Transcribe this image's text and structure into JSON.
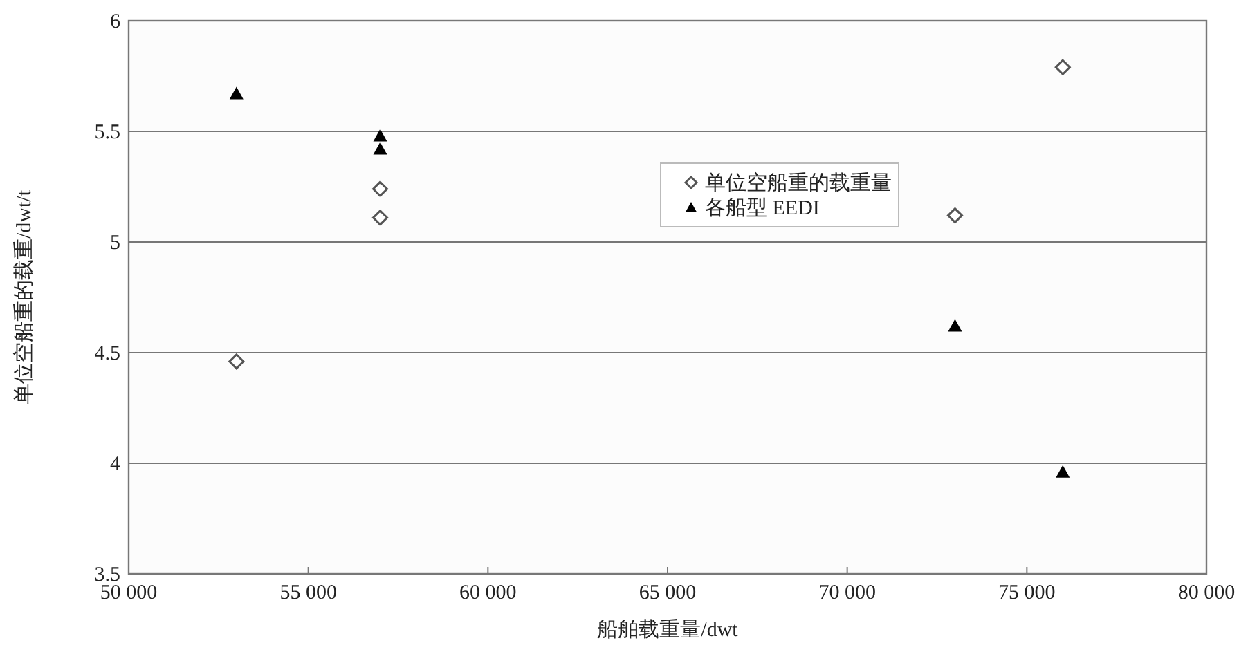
{
  "chart_data": {
    "type": "scatter",
    "xlabel": "船舶载重量/dwt",
    "ylabel": "单位空船重的载重/dwt/t",
    "xlim": [
      50000,
      80000
    ],
    "ylim": [
      3.5,
      6
    ],
    "xticks": [
      {
        "value": 50000,
        "label": "50 000"
      },
      {
        "value": 55000,
        "label": "55 000"
      },
      {
        "value": 60000,
        "label": "60 000"
      },
      {
        "value": 65000,
        "label": "65 000"
      },
      {
        "value": 70000,
        "label": "70 000"
      },
      {
        "value": 75000,
        "label": "75 000"
      },
      {
        "value": 80000,
        "label": "80 000"
      }
    ],
    "yticks": [
      3.5,
      4,
      4.5,
      5,
      5.5,
      6
    ],
    "grid": "y",
    "legend": "top",
    "series": [
      {
        "name": "单位空船重的载重量",
        "color": "#555555",
        "marker": "diamond",
        "x": [
          53000,
          57000,
          57000,
          73000,
          76000
        ],
        "values": [
          4.46,
          5.24,
          5.11,
          5.12,
          5.79
        ]
      },
      {
        "name": "各船型 EEDI",
        "color": "#000000",
        "marker": "triangle",
        "x": [
          53000,
          57000,
          57000,
          73000,
          76000
        ],
        "values": [
          5.67,
          5.48,
          5.42,
          4.62,
          3.96
        ]
      }
    ]
  }
}
